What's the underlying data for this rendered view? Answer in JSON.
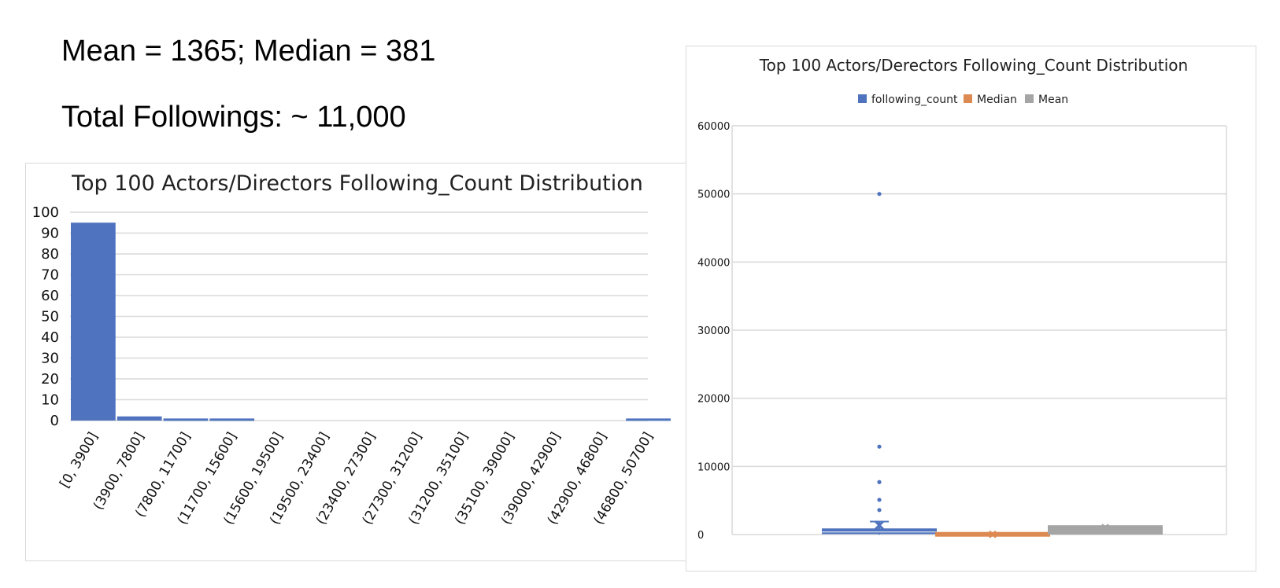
{
  "summary": {
    "stats_line": "Mean = 1365; Median = 381",
    "total_line": "Total Followings: ~ 11,000"
  },
  "colors": {
    "blue": "#4f73be",
    "orange": "#dd8a52",
    "gray": "#a5a5a5",
    "grid": "#d9d9d9"
  },
  "chart_data": [
    {
      "type": "bar",
      "title": "Top 100 Actors/Directors Following_Count Distribution",
      "categories": [
        "[0, 3900]",
        "(3900, 7800]",
        "(7800, 11700]",
        "(11700, 15600]",
        "(15600, 19500]",
        "(19500, 23400]",
        "(23400, 27300]",
        "(27300, 31200]",
        "(31200, 35100]",
        "(35100, 39000]",
        "(39000, 42900]",
        "(42900, 46800]",
        "(46800, 50700]"
      ],
      "values": [
        95,
        2,
        1,
        1,
        0,
        0,
        0,
        0,
        0,
        0,
        0,
        0,
        1
      ],
      "yticks": [
        0,
        10,
        20,
        30,
        40,
        50,
        60,
        70,
        80,
        90,
        100
      ],
      "ylim": [
        0,
        100
      ],
      "grid": true
    },
    {
      "type": "box",
      "title": "Top 100 Actors/Derectors Following_Count Distribution",
      "legend_position": "top",
      "series": [
        {
          "name": "following_count",
          "color": "#4f73be",
          "q1": 70,
          "median": 381,
          "q3": 900,
          "mean": 1365,
          "whisker_low": 0,
          "whisker_high": 1900,
          "outliers": [
            3600,
            5100,
            7700,
            12900,
            50000
          ]
        },
        {
          "name": "Median",
          "color": "#dd8a52",
          "value": 381
        },
        {
          "name": "Mean",
          "color": "#a5a5a5",
          "value": 1365
        }
      ],
      "yticks": [
        0,
        10000,
        20000,
        30000,
        40000,
        50000,
        60000
      ],
      "ylim": [
        0,
        60000
      ],
      "grid": true
    }
  ]
}
